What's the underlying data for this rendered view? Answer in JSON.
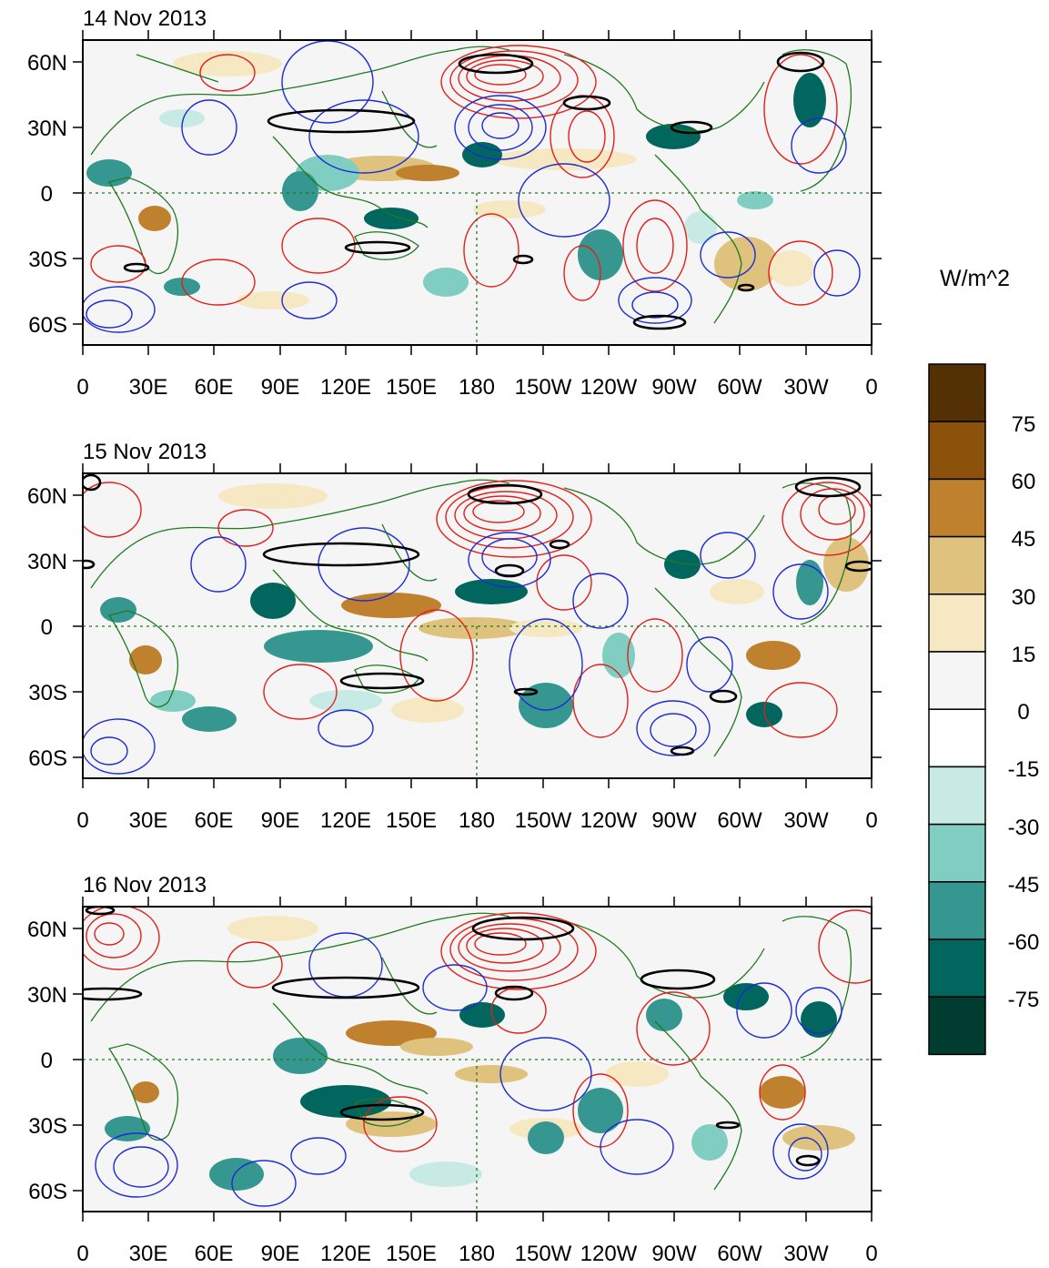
{
  "panels": [
    {
      "title": "14 Nov 2013"
    },
    {
      "title": "15 Nov 2013"
    },
    {
      "title": "16 Nov 2013"
    }
  ],
  "axes": {
    "x_ticks": [
      "0",
      "30E",
      "60E",
      "90E",
      "120E",
      "150E",
      "180",
      "150W",
      "120W",
      "90W",
      "60W",
      "30W",
      "0"
    ],
    "y_ticks": [
      "60N",
      "30N",
      "0",
      "30S",
      "60S"
    ]
  },
  "colorbar": {
    "units": "W/m^2",
    "labels": [
      "75",
      "60",
      "45",
      "30",
      "15",
      "0",
      "-15",
      "-30",
      "-45",
      "-60",
      "-75"
    ],
    "colors": [
      "#543005",
      "#8c510a",
      "#bf812d",
      "#dfc27d",
      "#f6e8c3",
      "#f5f5f5",
      "#ffffff",
      "#c7eae5",
      "#80cdc1",
      "#35978f",
      "#01665e",
      "#003c30"
    ]
  },
  "colors": {
    "coast": "#1f7a1f",
    "pos_contour": "#e0201b",
    "neg_contour": "#1c2bd6",
    "sig_contour": "#000000"
  }
}
